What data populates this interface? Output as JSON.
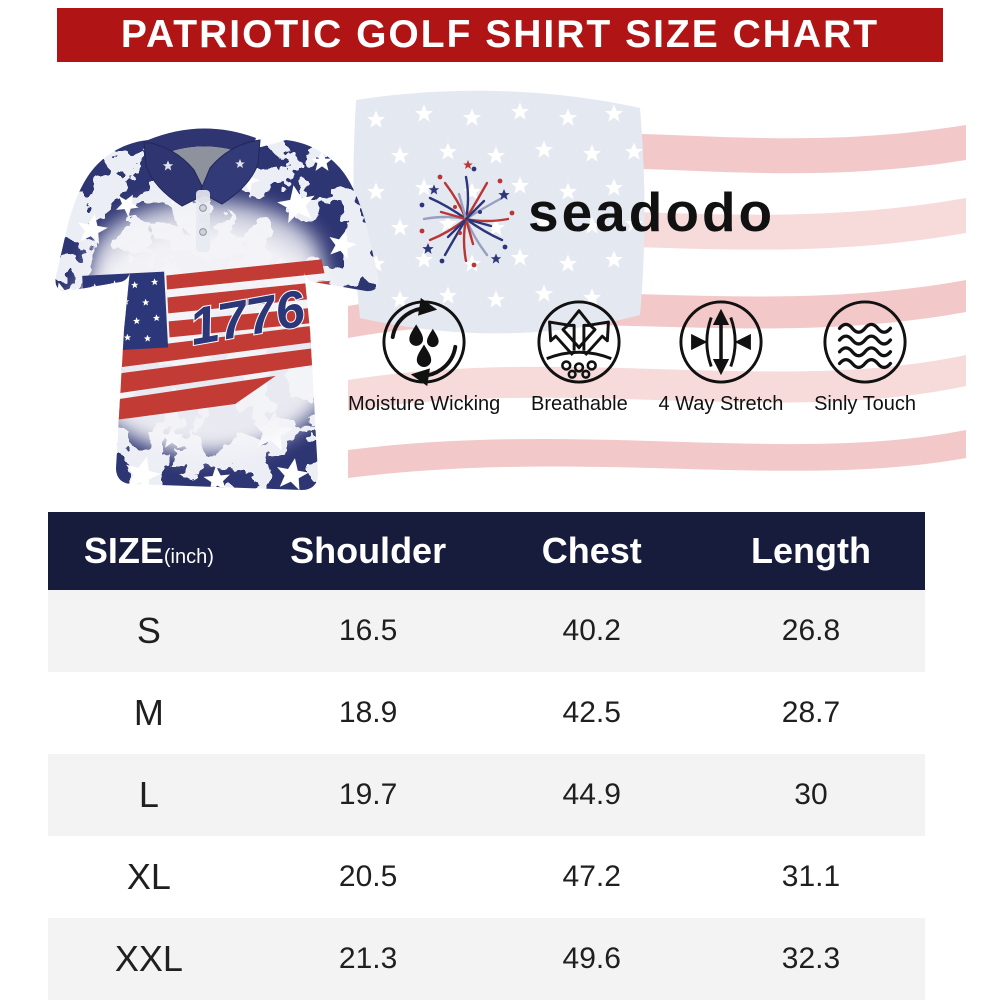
{
  "banner": {
    "title": "PATRIOTIC GOLF SHIRT SIZE CHART"
  },
  "brand": {
    "name": "seadodo"
  },
  "product": {
    "flag_year": "1776",
    "description": "Navy and white patriotic golf polo shirt with stars and American flag 1776 print"
  },
  "features": [
    {
      "name": "moisture-wicking",
      "label": "Moisture Wicking"
    },
    {
      "name": "breathable",
      "label": "Breathable"
    },
    {
      "name": "four-way-stretch",
      "label": "4 Way Stretch"
    },
    {
      "name": "silky-touch",
      "label": "Sinly Touch"
    }
  ],
  "size_chart": {
    "size_label": "SIZE",
    "size_unit": "(inch)",
    "columns": [
      "Shoulder",
      "Chest",
      "Length"
    ],
    "rows": [
      {
        "size": "S",
        "shoulder": "16.5",
        "chest": "40.2",
        "length": "26.8"
      },
      {
        "size": "M",
        "shoulder": "18.9",
        "chest": "42.5",
        "length": "28.7"
      },
      {
        "size": "L",
        "shoulder": "19.7",
        "chest": "44.9",
        "length": "30"
      },
      {
        "size": "XL",
        "shoulder": "20.5",
        "chest": "47.2",
        "length": "31.1"
      },
      {
        "size": "XXL",
        "shoulder": "21.3",
        "chest": "49.6",
        "length": "32.3"
      }
    ]
  },
  "colors": {
    "banner_red": "#b11414",
    "header_navy": "#171b3c",
    "row_alt_gray": "#f3f3f3",
    "shirt_navy": "#2f3573",
    "flag_red": "#c23b34"
  },
  "chart_data": {
    "type": "table",
    "title": "PATRIOTIC GOLF SHIRT SIZE CHART",
    "unit": "inch",
    "columns": [
      "SIZE",
      "Shoulder",
      "Chest",
      "Length"
    ],
    "rows": [
      [
        "S",
        16.5,
        40.2,
        26.8
      ],
      [
        "M",
        18.9,
        42.5,
        28.7
      ],
      [
        "L",
        19.7,
        44.9,
        30
      ],
      [
        "XL",
        20.5,
        47.2,
        31.1
      ],
      [
        "XXL",
        21.3,
        49.6,
        32.3
      ]
    ]
  }
}
